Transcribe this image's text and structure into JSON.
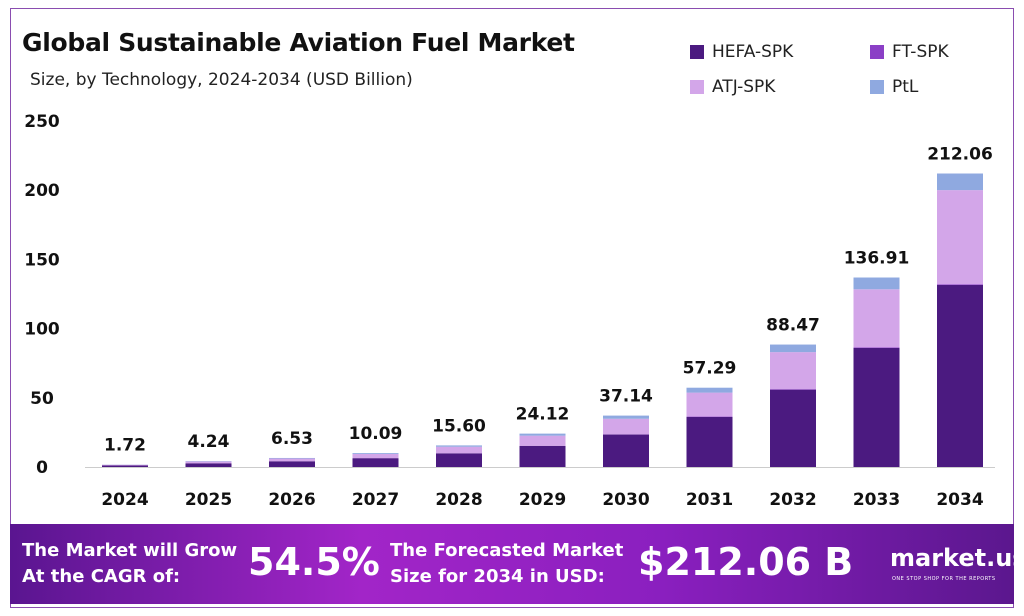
{
  "chart_data": {
    "type": "bar",
    "stacked": true,
    "title": "Global Sustainable Aviation Fuel Market",
    "subtitle": "Size, by Technology, 2024-2034 (USD Billion)",
    "xlabel": "",
    "ylabel": "",
    "ylim": [
      0,
      250
    ],
    "yticks": [
      0,
      50,
      100,
      150,
      200,
      250
    ],
    "categories": [
      "2024",
      "2025",
      "2026",
      "2027",
      "2028",
      "2029",
      "2030",
      "2031",
      "2032",
      "2033",
      "2034"
    ],
    "totals": [
      "1.72",
      "4.24",
      "6.53",
      "10.09",
      "15.60",
      "24.12",
      "37.14",
      "57.29",
      "88.47",
      "136.91",
      "212.06"
    ],
    "series": [
      {
        "name": "HEFA-SPK",
        "color": "#4b1a80",
        "values": [
          1.09,
          2.68,
          4.13,
          6.37,
          9.85,
          15.23,
          23.45,
          36.17,
          55.86,
          86.0,
          131.5
        ]
      },
      {
        "name": "FT-SPK",
        "color": "#8b3fc6",
        "values": [
          0.01,
          0.02,
          0.03,
          0.05,
          0.08,
          0.12,
          0.18,
          0.28,
          0.43,
          0.4,
          0.5
        ]
      },
      {
        "name": "ATJ-SPK",
        "color": "#d3a6e9",
        "values": [
          0.52,
          1.28,
          1.97,
          3.05,
          4.71,
          7.28,
          11.22,
          17.3,
          26.72,
          42.0,
          68.06
        ]
      },
      {
        "name": "PtL",
        "color": "#8fa9e0",
        "values": [
          0.1,
          0.26,
          0.4,
          0.62,
          0.96,
          1.49,
          2.29,
          3.54,
          5.46,
          8.51,
          12.0
        ]
      }
    ],
    "legend": "top-right",
    "grid": false
  },
  "banner": {
    "cagr_label_1": "The Market will Grow",
    "cagr_label_2": "At the CAGR of:",
    "cagr_value": "54.5%",
    "forecast_label_1": "The Forecasted Market",
    "forecast_label_2": "Size for 2034 in USD:",
    "forecast_value": "$212.06 B",
    "brand": "market.us",
    "brand_tagline": "ONE STOP SHOP FOR THE REPORTS"
  }
}
